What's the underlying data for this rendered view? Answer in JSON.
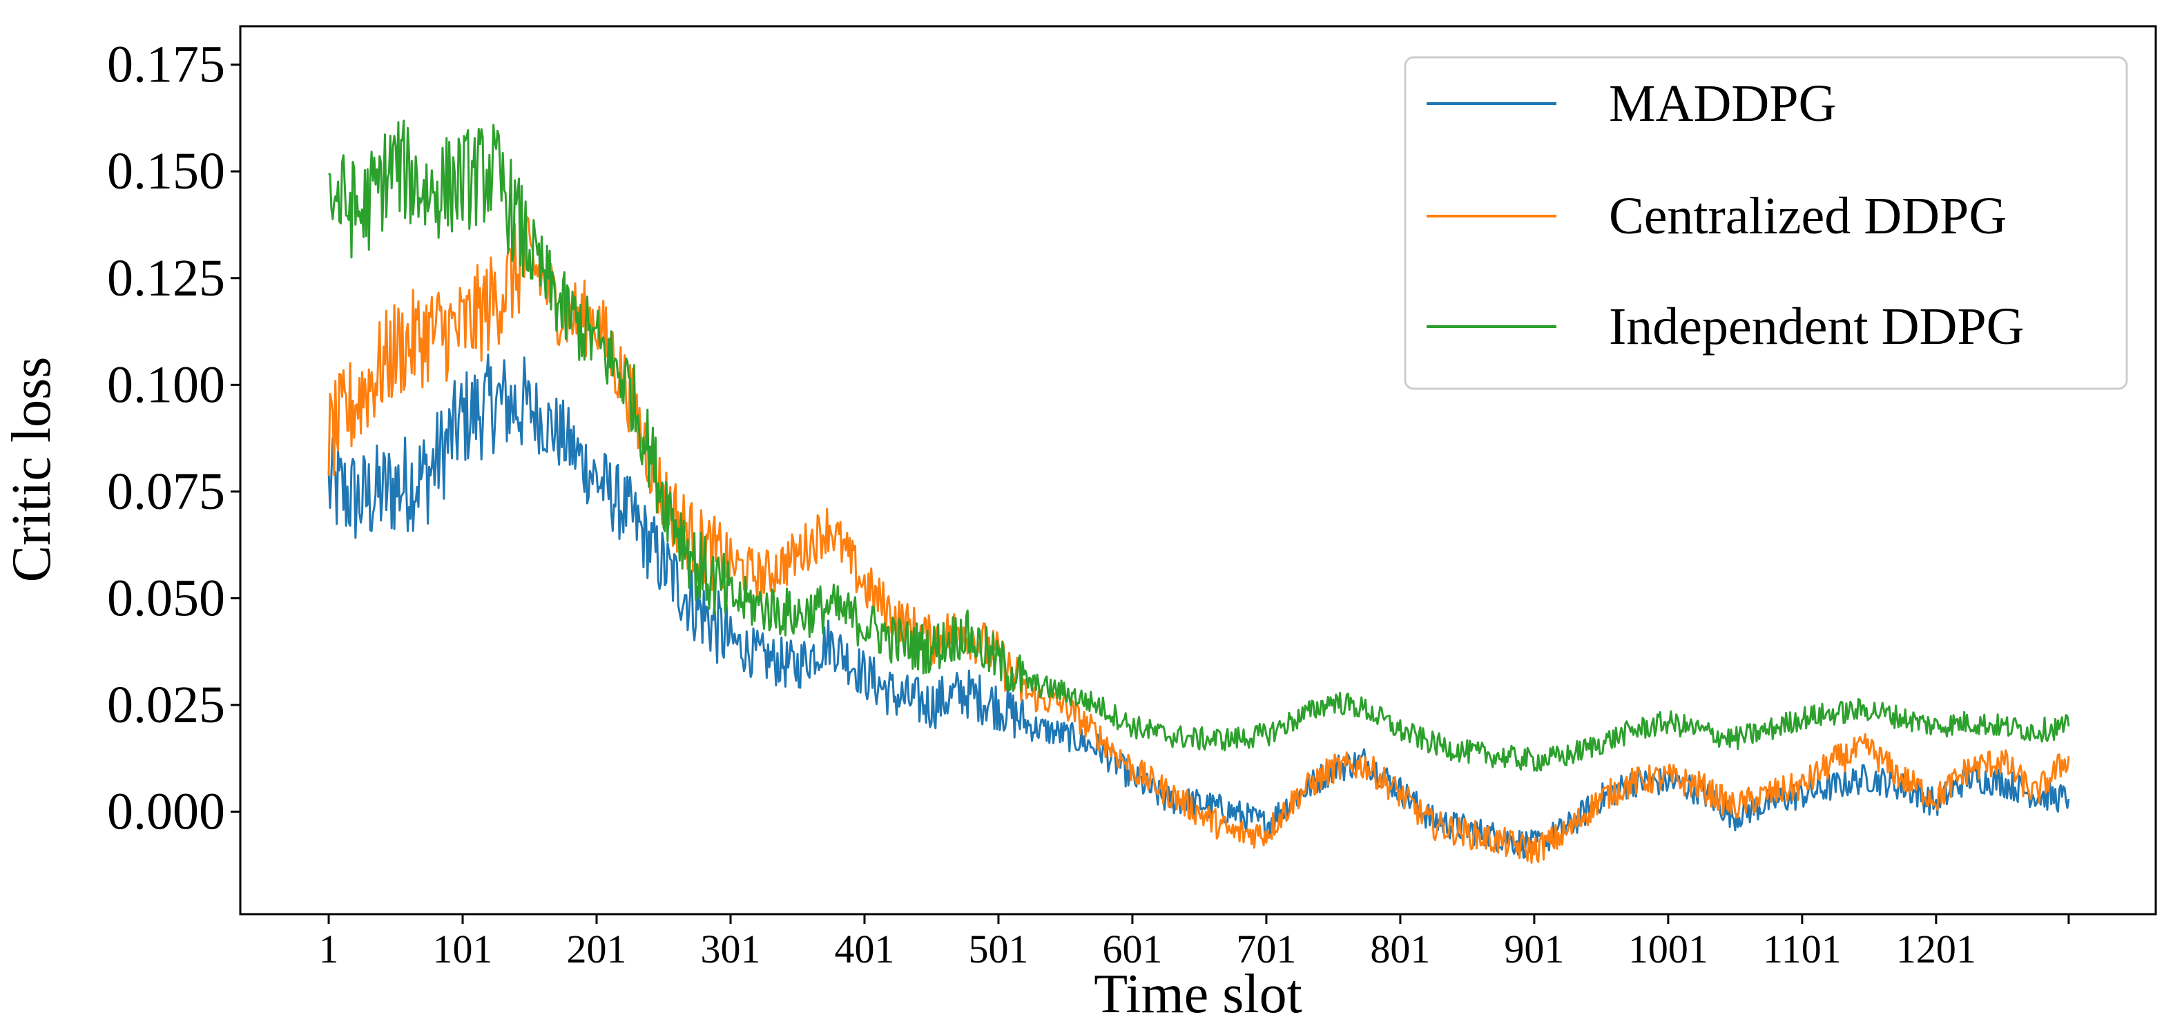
{
  "chart_data": {
    "type": "line",
    "title": "",
    "xlabel": "Time slot",
    "ylabel": "Critic loss",
    "xlim": [
      -65,
      1365
    ],
    "ylim": [
      -0.024,
      0.184
    ],
    "x_ticks": [
      1,
      101,
      201,
      301,
      401,
      501,
      601,
      701,
      801,
      901,
      1001,
      1101,
      1201,
      1300
    ],
    "x_tick_labels": [
      "1",
      "101",
      "201",
      "301",
      "401",
      "501",
      "601",
      "701",
      "801",
      "901",
      "1001",
      "1101",
      "1201",
      ""
    ],
    "y_ticks": [
      0.0,
      0.025,
      0.05,
      0.075,
      0.1,
      0.125,
      0.15,
      0.175
    ],
    "y_tick_labels": [
      "0.000",
      "0.025",
      "0.050",
      "0.075",
      "0.100",
      "0.125",
      "0.150",
      "0.175"
    ],
    "grid": false,
    "legend_position": "top-right",
    "noise_note": "",
    "series": [
      {
        "name": "MADDPG",
        "color": "#1f77b4",
        "x": [
          1,
          25,
          50,
          75,
          101,
          125,
          150,
          175,
          201,
          225,
          250,
          275,
          301,
          325,
          350,
          375,
          401,
          425,
          450,
          475,
          501,
          525,
          550,
          575,
          601,
          625,
          650,
          675,
          701,
          725,
          750,
          775,
          801,
          825,
          850,
          875,
          901,
          925,
          950,
          975,
          1001,
          1025,
          1050,
          1075,
          1101,
          1125,
          1150,
          1175,
          1201,
          1225,
          1250,
          1275,
          1300
        ],
        "y": [
          0.076,
          0.073,
          0.076,
          0.079,
          0.092,
          0.096,
          0.095,
          0.088,
          0.078,
          0.07,
          0.058,
          0.048,
          0.04,
          0.036,
          0.034,
          0.04,
          0.032,
          0.027,
          0.025,
          0.028,
          0.025,
          0.02,
          0.018,
          0.015,
          0.008,
          0.003,
          0.002,
          0.0,
          -0.003,
          0.004,
          0.01,
          0.012,
          0.005,
          -0.002,
          -0.004,
          -0.006,
          -0.008,
          -0.004,
          0.003,
          0.007,
          0.007,
          0.005,
          -0.001,
          0.002,
          0.004,
          0.006,
          0.008,
          0.006,
          0.002,
          0.008,
          0.007,
          0.004,
          0.003
        ]
      },
      {
        "name": "Centralized DDPG",
        "color": "#ff7f0e",
        "x": [
          1,
          25,
          50,
          75,
          101,
          125,
          150,
          175,
          201,
          225,
          250,
          275,
          301,
          325,
          350,
          375,
          401,
          425,
          450,
          475,
          501,
          525,
          550,
          575,
          601,
          625,
          650,
          675,
          701,
          725,
          750,
          775,
          801,
          825,
          850,
          875,
          901,
          925,
          950,
          975,
          1001,
          1025,
          1050,
          1075,
          1101,
          1125,
          1150,
          1175,
          1201,
          1225,
          1250,
          1275,
          1300
        ],
        "y": [
          0.087,
          0.098,
          0.108,
          0.112,
          0.113,
          0.12,
          0.13,
          0.117,
          0.115,
          0.098,
          0.074,
          0.063,
          0.058,
          0.055,
          0.06,
          0.067,
          0.053,
          0.045,
          0.04,
          0.043,
          0.036,
          0.027,
          0.025,
          0.018,
          0.01,
          0.005,
          0.0,
          -0.005,
          -0.005,
          0.004,
          0.01,
          0.011,
          0.004,
          -0.003,
          -0.005,
          -0.007,
          -0.009,
          -0.005,
          0.003,
          0.007,
          0.008,
          0.006,
          0.001,
          0.004,
          0.006,
          0.012,
          0.015,
          0.008,
          0.003,
          0.01,
          0.012,
          0.004,
          0.013
        ]
      },
      {
        "name": "Independent DDPG",
        "color": "#2ca02c",
        "x": [
          1,
          25,
          50,
          75,
          101,
          125,
          150,
          175,
          201,
          225,
          250,
          275,
          301,
          325,
          350,
          375,
          401,
          425,
          450,
          475,
          501,
          525,
          550,
          575,
          601,
          625,
          650,
          675,
          701,
          725,
          750,
          775,
          801,
          825,
          850,
          875,
          901,
          925,
          950,
          975,
          1001,
          1025,
          1050,
          1075,
          1101,
          1125,
          1150,
          1175,
          1201,
          1225,
          1250,
          1275,
          1300
        ],
        "y": [
          0.145,
          0.14,
          0.152,
          0.145,
          0.148,
          0.15,
          0.132,
          0.118,
          0.11,
          0.1,
          0.075,
          0.058,
          0.05,
          0.048,
          0.046,
          0.048,
          0.044,
          0.04,
          0.038,
          0.042,
          0.035,
          0.03,
          0.028,
          0.025,
          0.02,
          0.018,
          0.017,
          0.017,
          0.018,
          0.022,
          0.026,
          0.024,
          0.019,
          0.016,
          0.014,
          0.013,
          0.012,
          0.013,
          0.016,
          0.019,
          0.021,
          0.019,
          0.017,
          0.019,
          0.022,
          0.023,
          0.024,
          0.022,
          0.02,
          0.021,
          0.02,
          0.019,
          0.02
        ]
      }
    ]
  }
}
